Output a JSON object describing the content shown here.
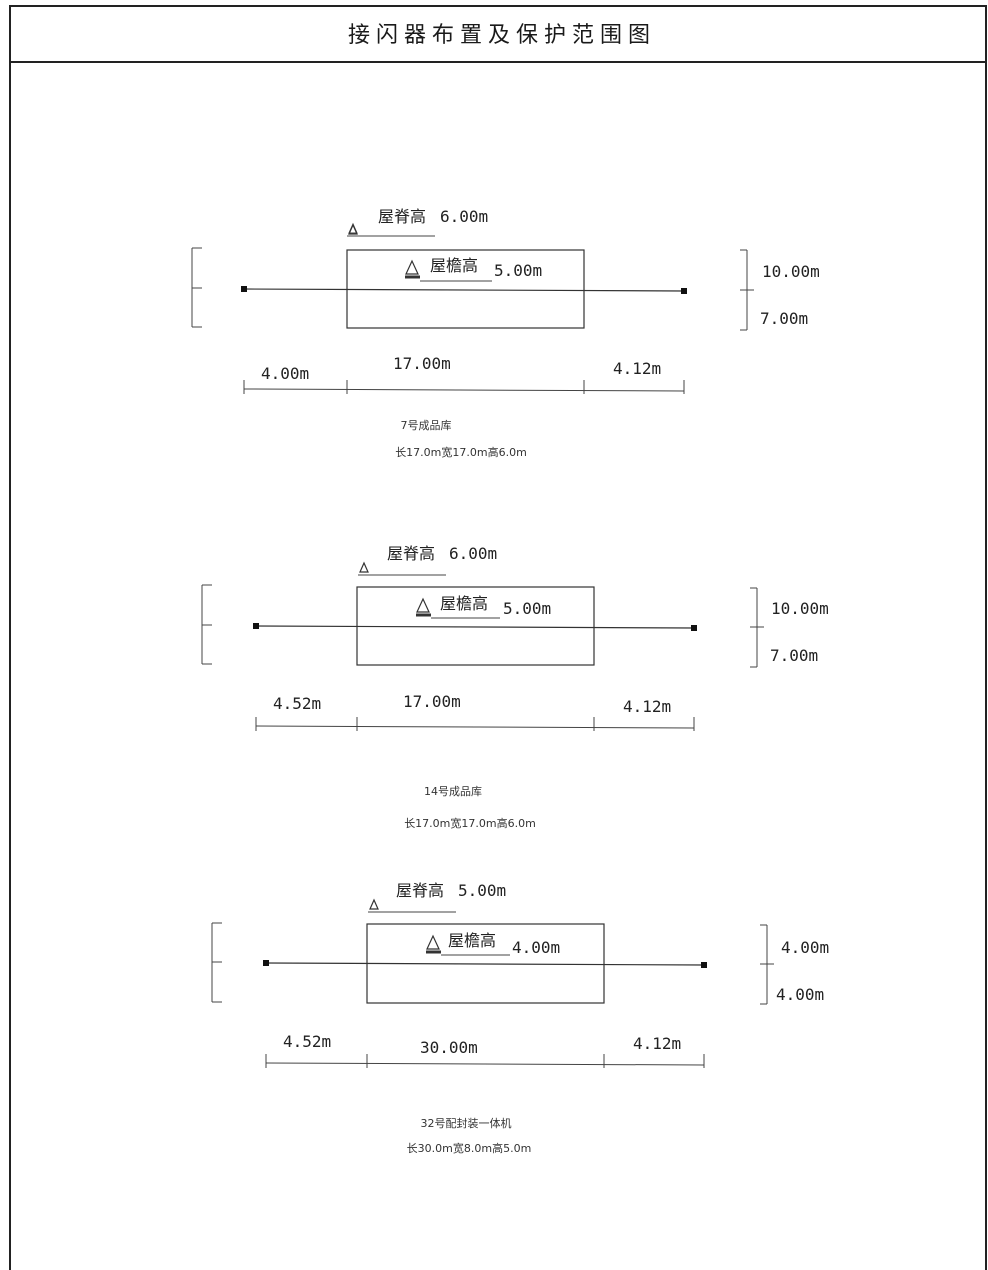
{
  "title": "接闪器布置及保护范围图",
  "diagrams": [
    {
      "ridge_label": "屋脊高",
      "ridge_height": "6.00m",
      "eave_label": "屋檐高",
      "eave_height": "5.00m",
      "right_upper": "10.00m",
      "right_lower": "7.00m",
      "dim_left": "4.00m",
      "dim_mid": "17.00m",
      "dim_right": "4.12m",
      "caption_name": "7号成品库",
      "caption_size": "长17.0m宽17.0m高6.0m"
    },
    {
      "ridge_label": "屋脊高",
      "ridge_height": "6.00m",
      "eave_label": "屋檐高",
      "eave_height": "5.00m",
      "right_upper": "10.00m",
      "right_lower": "7.00m",
      "dim_left": "4.52m",
      "dim_mid": "17.00m",
      "dim_right": "4.12m",
      "caption_name": "14号成品库",
      "caption_size": "长17.0m宽17.0m高6.0m"
    },
    {
      "ridge_label": "屋脊高",
      "ridge_height": "5.00m",
      "eave_label": "屋檐高",
      "eave_height": "4.00m",
      "right_upper": "4.00m",
      "right_lower": "4.00m",
      "dim_left": "4.52m",
      "dim_mid": "30.00m",
      "dim_right": "4.12m",
      "caption_name": "32号配封装一体机",
      "caption_size": "长30.0m宽8.0m高5.0m"
    }
  ]
}
